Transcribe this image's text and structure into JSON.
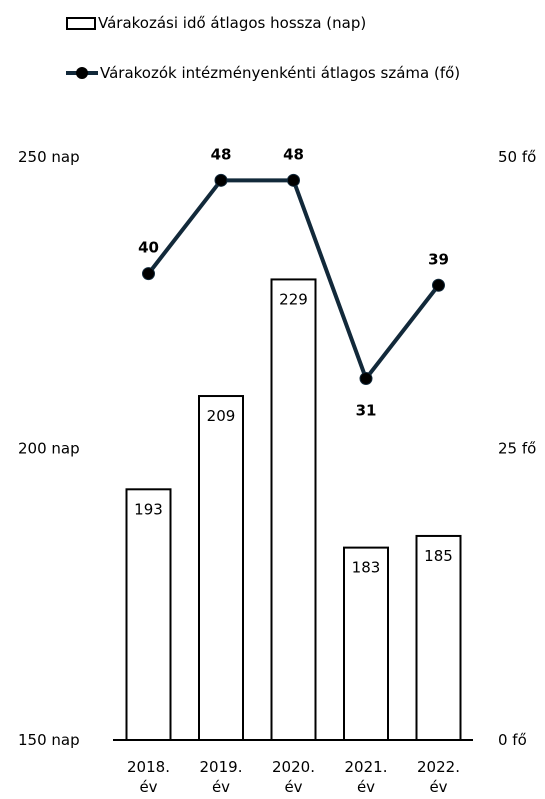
{
  "legend": {
    "bar_label": "Várakozási idő átlagos hossza (nap)",
    "line_label": "Várakozók intézményenkénti átlagos száma (fő)"
  },
  "colors": {
    "bar_fill": "#ffffff",
    "bar_stroke": "#000000",
    "line": "#12293a",
    "marker": "#000000"
  },
  "chart_data": {
    "type": "bar",
    "categories": [
      "2018. év",
      "2019. év",
      "2020. év",
      "2021. év",
      "2022. év"
    ],
    "series": [
      {
        "name": "Várakozási idő átlagos hossza (nap)",
        "type": "bar",
        "axis": "left",
        "values": [
          193,
          209,
          229,
          183,
          185
        ]
      },
      {
        "name": "Várakozók intézményenkénti átlagos száma (fő)",
        "type": "line",
        "axis": "right",
        "values": [
          40,
          48,
          48,
          31,
          39
        ]
      }
    ],
    "y_left": {
      "range": [
        150,
        250
      ],
      "ticks": [
        "150 nap",
        "200 nap",
        "250 nap"
      ]
    },
    "y_right": {
      "range": [
        0,
        50
      ],
      "ticks": [
        "0 fő",
        "25 fő",
        "50 fő"
      ]
    },
    "grid": false,
    "legend_position": "top"
  }
}
